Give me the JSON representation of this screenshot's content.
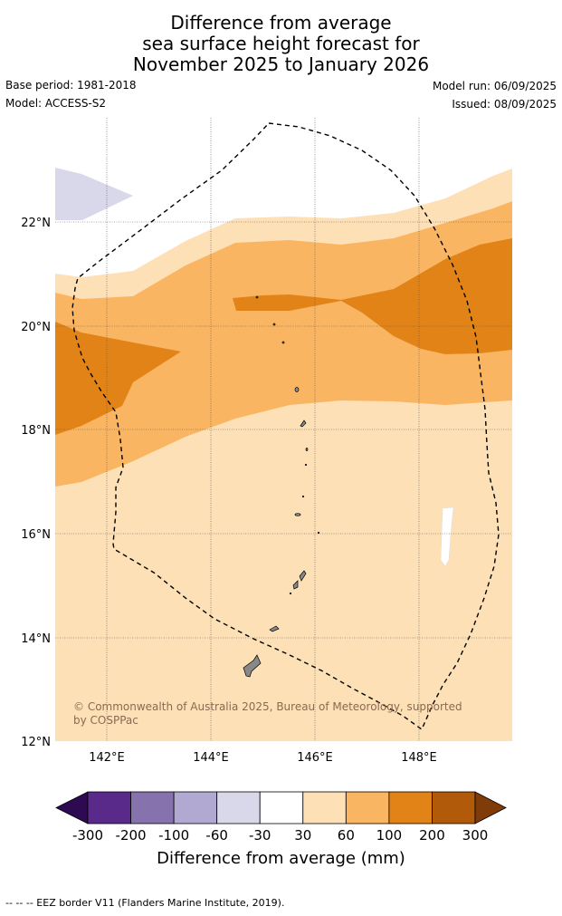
{
  "title_lines": [
    "Difference from average",
    "sea surface height forecast for",
    "November 2025 to January 2026"
  ],
  "base_period": "Base period: 1981-2018",
  "model": "Model: ACCESS-S2",
  "model_run": "Model run: 06/09/2025",
  "issued": "Issued: 08/09/2025",
  "lat_ticks": [
    "22°N",
    "20°N",
    "18°N",
    "16°N",
    "14°N",
    "12°N"
  ],
  "lon_ticks": [
    "142°E",
    "144°E",
    "146°E",
    "148°E"
  ],
  "copyright_lines": [
    "© Commonwealth of Australia 2025, Bureau of Meteorology, supported",
    "by COSPPac"
  ],
  "colorbar": {
    "labels": [
      "-300",
      "-200",
      "-100",
      "-60",
      "-30",
      "30",
      "60",
      "100",
      "200",
      "300"
    ],
    "colors": [
      "#2d0a52",
      "#5a2a8a",
      "#8673ae",
      "#b2a9d2",
      "#d8d8ea",
      "#ffffff",
      "#fde0b6",
      "#f9b562",
      "#e28318",
      "#b15a0a",
      "#7f3b08"
    ],
    "title": "Difference from average (mm)"
  },
  "map_colors": {
    "light_purple": "#d8d8ea",
    "pale_orange": "#fde0b6",
    "light_orange": "#f9b562",
    "orange": "#e28318",
    "land": "#888888"
  },
  "footer": "--  --  -- EEZ border V11 (Flanders Marine Institute, 2019)."
}
